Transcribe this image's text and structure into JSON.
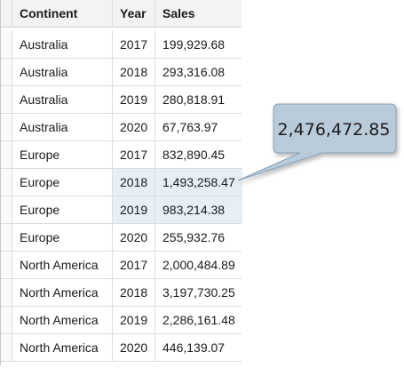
{
  "table": {
    "headers": [
      "Continent",
      "Year",
      "Sales"
    ],
    "rows": [
      {
        "continent": "Australia",
        "year": "2017",
        "sales": "199,929.68"
      },
      {
        "continent": "Australia",
        "year": "2018",
        "sales": "293,316.08"
      },
      {
        "continent": "Australia",
        "year": "2019",
        "sales": "280,818.91"
      },
      {
        "continent": "Australia",
        "year": "2020",
        "sales": "67,763.97"
      },
      {
        "continent": "Europe",
        "year": "2017",
        "sales": "832,890.45"
      },
      {
        "continent": "Europe",
        "year": "2018",
        "sales": "1,493,258.47"
      },
      {
        "continent": "Europe",
        "year": "2019",
        "sales": "983,214.38"
      },
      {
        "continent": "Europe",
        "year": "2020",
        "sales": "255,932.76"
      },
      {
        "continent": "North America",
        "year": "2017",
        "sales": "2,000,484.89"
      },
      {
        "continent": "North America",
        "year": "2018",
        "sales": "3,197,730.25"
      },
      {
        "continent": "North America",
        "year": "2019",
        "sales": "2,286,161.48"
      },
      {
        "continent": "North America",
        "year": "2020",
        "sales": "446,139.07"
      }
    ]
  },
  "callout": {
    "value": "2,476,472.85"
  },
  "colors": {
    "selection": "#e6eef6",
    "callout_fill": "#b9cad9",
    "callout_stroke": "#8aa3b8"
  }
}
